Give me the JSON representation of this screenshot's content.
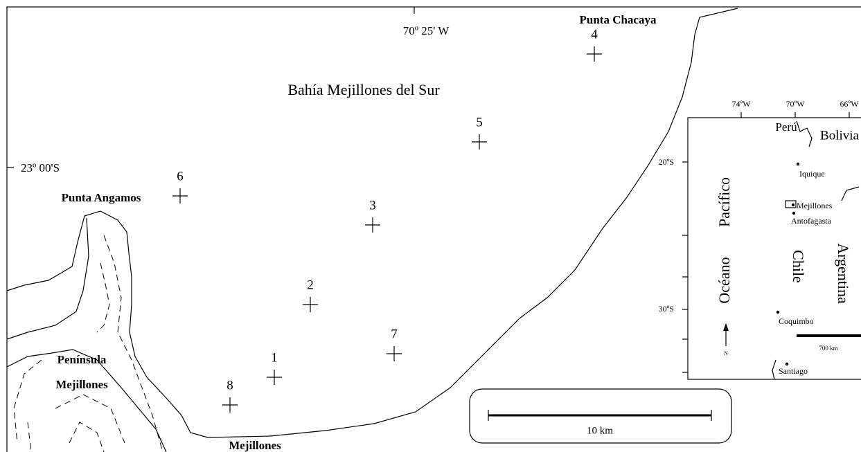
{
  "title": "Bahía Mejillones del Sur",
  "longitude_label": "70º 25' W",
  "latitude_label": "23º 00'S",
  "places": {
    "punta_chacaya": "Punta Chacaya",
    "punta_angamos": "Punta Angamos",
    "peninsula_1": "Península",
    "peninsula_2": "Mejillones",
    "town": "Mejillones"
  },
  "stations": [
    "1",
    "2",
    "3",
    "4",
    "5",
    "6",
    "7",
    "8"
  ],
  "scale_bar": "10 km",
  "inset": {
    "longitudes": [
      "74ºW",
      "70ºW",
      "66ºW"
    ],
    "latitudes": [
      "20ºS",
      "30ºS"
    ],
    "countries": [
      "Perú",
      "Bolivia",
      "Chile",
      "Argentina"
    ],
    "ocean": [
      "Océano",
      "Pacífico"
    ],
    "cities": [
      "Iquique",
      "Mejillones",
      "Antofagasta",
      "Coquimbo",
      "Santiago"
    ],
    "scale": "700 km",
    "north": "N"
  }
}
